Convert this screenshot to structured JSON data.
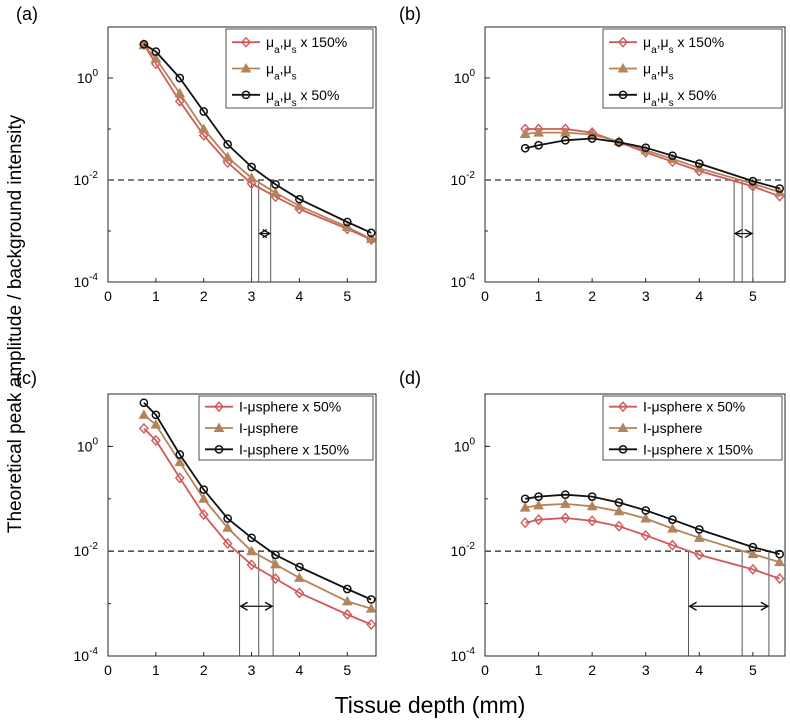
{
  "figure": {
    "ylabel": "Theoretical peak amplitude / background intensity",
    "xlabel": "Tissue depth (mm)"
  },
  "colors": {
    "red": "#d05a5a",
    "tan": "#b5835a",
    "black": "#111111",
    "threshold": "#555555",
    "guide": "#444444"
  },
  "chart_data": [
    {
      "panel_label": "(a)",
      "type": "line",
      "yscale": "log",
      "xlim": [
        0,
        5.6
      ],
      "ylim": [
        0.0001,
        10
      ],
      "xticks": [
        0,
        1,
        2,
        3,
        4,
        5
      ],
      "xtick_labels": [
        "0",
        "1",
        "2",
        "3",
        "4",
        "5"
      ],
      "yticks": [
        0.0001,
        0.01,
        1
      ],
      "ytick_labels": [
        {
          "base": "10",
          "exp": "-4"
        },
        {
          "base": "10",
          "exp": "-2"
        },
        {
          "base": "10",
          "exp": "0"
        }
      ],
      "threshold": 0.01,
      "guides": [
        3.0,
        3.15,
        3.4
      ],
      "arrow": [
        3.15,
        3.4
      ],
      "legend_position": "top-right",
      "x": [
        0.75,
        1.0,
        1.5,
        2.0,
        2.5,
        3.0,
        3.5,
        4.0,
        5.0,
        5.5
      ],
      "series": [
        {
          "name": "μa,μs x 150%",
          "legend": {
            "pre": "μ",
            "sub1": "a",
            "mid": ",μ",
            "sub2": "s",
            "post": " x 150%"
          },
          "color_key": "red",
          "marker": "diamond",
          "values": [
            4.5,
            1.9,
            0.35,
            0.075,
            0.022,
            0.0085,
            0.0047,
            0.0027,
            0.0011,
            0.00068
          ]
        },
        {
          "name": "μa,μs",
          "legend": {
            "pre": "μ",
            "sub1": "a",
            "mid": ",μ",
            "sub2": "s",
            "post": ""
          },
          "color_key": "tan",
          "marker": "triangle",
          "values": [
            4.4,
            2.4,
            0.5,
            0.1,
            0.028,
            0.011,
            0.0056,
            0.0031,
            0.0012,
            0.0007
          ]
        },
        {
          "name": "μa,μs x 50%",
          "legend": {
            "pre": "μ",
            "sub1": "a",
            "mid": ",μ",
            "sub2": "s",
            "post": " x 50%"
          },
          "color_key": "black",
          "marker": "circle",
          "values": [
            4.6,
            3.3,
            1.0,
            0.22,
            0.05,
            0.018,
            0.0082,
            0.0042,
            0.0015,
            0.00092
          ]
        }
      ]
    },
    {
      "panel_label": "(b)",
      "type": "line",
      "yscale": "log",
      "xlim": [
        0,
        5.6
      ],
      "ylim": [
        0.0001,
        10
      ],
      "xticks": [
        0,
        1,
        2,
        3,
        4,
        5
      ],
      "xtick_labels": [
        "0",
        "1",
        "2",
        "3",
        "4",
        "5"
      ],
      "yticks": [
        0.0001,
        0.01,
        1
      ],
      "ytick_labels": [
        {
          "base": "10",
          "exp": "-4"
        },
        {
          "base": "10",
          "exp": "-2"
        },
        {
          "base": "10",
          "exp": "0"
        }
      ],
      "threshold": 0.01,
      "guides": [
        4.65,
        4.8,
        5.0
      ],
      "arrow": [
        4.65,
        5.0
      ],
      "legend_position": "top-right",
      "x": [
        0.75,
        1.0,
        1.5,
        2.0,
        2.5,
        3.0,
        3.5,
        4.0,
        5.0,
        5.5
      ],
      "series": [
        {
          "name": "μa,μs x 150%",
          "legend": {
            "pre": "μ",
            "sub1": "a",
            "mid": ",μ",
            "sub2": "s",
            "post": " x 150%"
          },
          "color_key": "red",
          "marker": "diamond",
          "values": [
            0.1,
            0.1,
            0.1,
            0.085,
            0.055,
            0.035,
            0.023,
            0.015,
            0.0075,
            0.0048
          ]
        },
        {
          "name": "μa,μs",
          "legend": {
            "pre": "μ",
            "sub1": "a",
            "mid": ",μ",
            "sub2": "s",
            "post": ""
          },
          "color_key": "tan",
          "marker": "triangle",
          "values": [
            0.08,
            0.085,
            0.085,
            0.078,
            0.057,
            0.038,
            0.026,
            0.017,
            0.0085,
            0.0058
          ]
        },
        {
          "name": "μa,μs x 50%",
          "legend": {
            "pre": "μ",
            "sub1": "a",
            "mid": ",μ",
            "sub2": "s",
            "post": " x 50%"
          },
          "color_key": "black",
          "marker": "circle",
          "values": [
            0.042,
            0.048,
            0.06,
            0.065,
            0.055,
            0.043,
            0.03,
            0.021,
            0.0095,
            0.0068
          ]
        }
      ]
    },
    {
      "panel_label": "(c)",
      "type": "line",
      "yscale": "log",
      "xlim": [
        0,
        5.6
      ],
      "ylim": [
        0.0001,
        10
      ],
      "xticks": [
        0,
        1,
        2,
        3,
        4,
        5
      ],
      "xtick_labels": [
        "0",
        "1",
        "2",
        "3",
        "4",
        "5"
      ],
      "yticks": [
        0.0001,
        0.01,
        1
      ],
      "ytick_labels": [
        {
          "base": "10",
          "exp": "-4"
        },
        {
          "base": "10",
          "exp": "-2"
        },
        {
          "base": "10",
          "exp": "0"
        }
      ],
      "threshold": 0.01,
      "guides": [
        2.75,
        3.15,
        3.45
      ],
      "arrow": [
        2.75,
        3.45
      ],
      "legend_position": "top-right",
      "x": [
        0.75,
        1.0,
        1.5,
        2.0,
        2.5,
        3.0,
        3.5,
        4.0,
        5.0,
        5.5
      ],
      "series": [
        {
          "name": "I-μsphere x 50%",
          "legend": {
            "pre": "I-μsphere x 50%",
            "sub1": "",
            "mid": "",
            "sub2": "",
            "post": ""
          },
          "color_key": "red",
          "marker": "diamond",
          "values": [
            2.2,
            1.3,
            0.25,
            0.05,
            0.014,
            0.0055,
            0.003,
            0.0016,
            0.00062,
            0.0004
          ]
        },
        {
          "name": "I-μsphere",
          "legend": {
            "pre": "I-μsphere",
            "sub1": "",
            "mid": "",
            "sub2": "",
            "post": ""
          },
          "color_key": "tan",
          "marker": "triangle",
          "values": [
            4.0,
            2.6,
            0.5,
            0.1,
            0.028,
            0.01,
            0.0056,
            0.0031,
            0.0011,
            0.0008
          ]
        },
        {
          "name": "I-μsphere x 150%",
          "legend": {
            "pre": "I-μsphere x 150%",
            "sub1": "",
            "mid": "",
            "sub2": "",
            "post": ""
          },
          "color_key": "black",
          "marker": "circle",
          "values": [
            6.8,
            4.0,
            0.7,
            0.15,
            0.042,
            0.018,
            0.0085,
            0.005,
            0.0019,
            0.0012
          ]
        }
      ]
    },
    {
      "panel_label": "(d)",
      "type": "line",
      "yscale": "log",
      "xlim": [
        0,
        5.6
      ],
      "ylim": [
        0.0001,
        10
      ],
      "xticks": [
        0,
        1,
        2,
        3,
        4,
        5
      ],
      "xtick_labels": [
        "0",
        "1",
        "2",
        "3",
        "4",
        "5"
      ],
      "yticks": [
        0.0001,
        0.01,
        1
      ],
      "ytick_labels": [
        {
          "base": "10",
          "exp": "-4"
        },
        {
          "base": "10",
          "exp": "-2"
        },
        {
          "base": "10",
          "exp": "0"
        }
      ],
      "threshold": 0.01,
      "guides": [
        3.8,
        4.8,
        5.3
      ],
      "arrow": [
        3.8,
        5.3
      ],
      "legend_position": "top-right",
      "x": [
        0.75,
        1.0,
        1.5,
        2.0,
        2.5,
        3.0,
        3.5,
        4.0,
        5.0,
        5.5
      ],
      "series": [
        {
          "name": "I-μsphere x 50%",
          "legend": {
            "pre": "I-μsphere x 50%",
            "sub1": "",
            "mid": "",
            "sub2": "",
            "post": ""
          },
          "color_key": "red",
          "marker": "diamond",
          "values": [
            0.035,
            0.04,
            0.043,
            0.038,
            0.03,
            0.02,
            0.013,
            0.0085,
            0.0045,
            0.003
          ]
        },
        {
          "name": "I-μsphere",
          "legend": {
            "pre": "I-μsphere",
            "sub1": "",
            "mid": "",
            "sub2": "",
            "post": ""
          },
          "color_key": "tan",
          "marker": "triangle",
          "values": [
            0.068,
            0.075,
            0.08,
            0.072,
            0.058,
            0.042,
            0.027,
            0.018,
            0.0088,
            0.0062
          ]
        },
        {
          "name": "I-μsphere x 150%",
          "legend": {
            "pre": "I-μsphere x 150%",
            "sub1": "",
            "mid": "",
            "sub2": "",
            "post": ""
          },
          "color_key": "black",
          "marker": "circle",
          "values": [
            0.1,
            0.11,
            0.12,
            0.11,
            0.085,
            0.06,
            0.04,
            0.026,
            0.012,
            0.0088
          ]
        }
      ]
    }
  ]
}
